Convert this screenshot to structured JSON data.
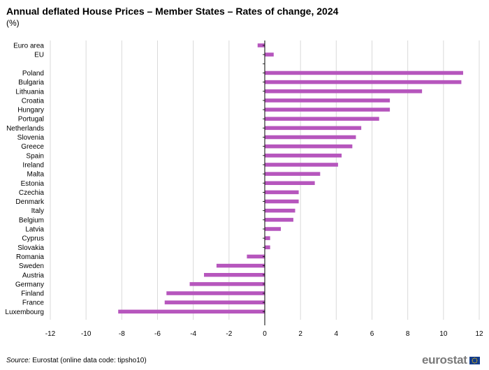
{
  "chart_data": {
    "type": "bar",
    "orientation": "horizontal",
    "title": "Annual deflated House Prices – Member States – Rates of change, 2024",
    "subtitle": "(%)",
    "xlabel": "",
    "ylabel": "",
    "xlim": [
      -12,
      12
    ],
    "xticks": [
      -12,
      -10,
      -8,
      -6,
      -4,
      -2,
      0,
      2,
      4,
      6,
      8,
      10,
      12
    ],
    "grid": true,
    "bar_color": "#b656bd",
    "categories": [
      "Euro area",
      "EU",
      "",
      "Poland",
      "Bulgaria",
      "Lithuania",
      "Croatia",
      "Hungary",
      "Portugal",
      "Netherlands",
      "Slovenia",
      "Greece",
      "Spain",
      "Ireland",
      "Malta",
      "Estonia",
      "Czechia",
      "Denmark",
      "Italy",
      "Belgium",
      "Latvia",
      "Cyprus",
      "Slovakia",
      "Romania",
      "Sweden",
      "Austria",
      "Germany",
      "Finland",
      "France",
      "Luxembourg"
    ],
    "values": [
      -0.4,
      0.5,
      null,
      11.1,
      11.0,
      8.8,
      7.0,
      7.0,
      6.4,
      5.4,
      5.1,
      4.9,
      4.3,
      4.1,
      3.1,
      2.8,
      1.9,
      1.9,
      1.7,
      1.6,
      0.9,
      0.3,
      0.3,
      -1.0,
      -2.7,
      -3.4,
      -4.2,
      -5.5,
      -5.6,
      -8.2
    ]
  },
  "source": {
    "label": "Source:",
    "text": "Eurostat (online data code: tipsho10)"
  },
  "logo": {
    "text": "eurostat"
  }
}
